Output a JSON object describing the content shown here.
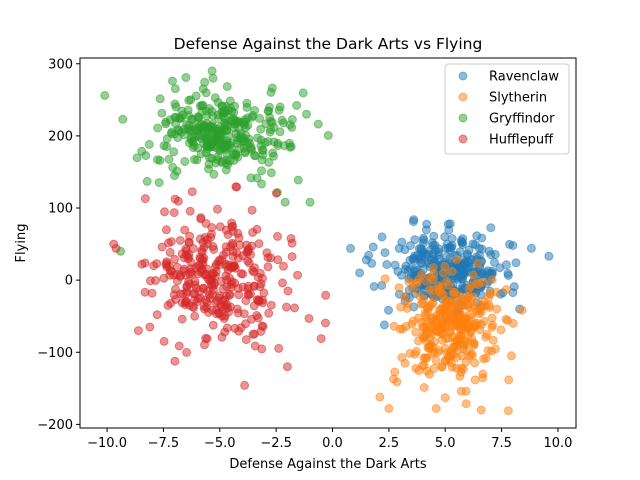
{
  "chart_data": {
    "type": "scatter",
    "title": "Defense Against the Dark Arts vs Flying",
    "xlabel": "Defense Against the Dark Arts",
    "ylabel": "Flying",
    "xlim": [
      -11.2,
      10.8
    ],
    "ylim": [
      -205,
      308
    ],
    "x_ticks": [
      -10.0,
      -7.5,
      -5.0,
      -2.5,
      0.0,
      2.5,
      5.0,
      7.5,
      10.0
    ],
    "x_tick_labels": [
      "−10.0",
      "−7.5",
      "−5.0",
      "−2.5",
      "0.0",
      "2.5",
      "5.0",
      "7.5",
      "10.0"
    ],
    "y_ticks": [
      -200,
      -100,
      0,
      100,
      200,
      300
    ],
    "y_tick_labels": [
      "−200",
      "−100",
      "0",
      "100",
      "200",
      "300"
    ],
    "grid": false,
    "legend_position": "top-right",
    "marker_alpha": 0.5,
    "series": [
      {
        "name": "Ravenclaw",
        "color": "#1f77b4",
        "cluster": {
          "x_mean": 5.0,
          "x_sd": 1.3,
          "y_mean": 12,
          "y_sd": 25,
          "count": 320
        },
        "points": [
          [
            0.8,
            44
          ],
          [
            9.6,
            33
          ],
          [
            3.6,
            84
          ],
          [
            1.5,
            28
          ],
          [
            8.0,
            48
          ],
          [
            8.3,
            -40
          ],
          [
            2.3,
            -62
          ],
          [
            1.2,
            10
          ]
        ]
      },
      {
        "name": "Slytherin",
        "color": "#ff7f0e",
        "cluster": {
          "x_mean": 5.2,
          "x_sd": 1.1,
          "y_mean": -62,
          "y_sd": 38,
          "count": 320
        },
        "points": [
          [
            2.1,
            -162
          ],
          [
            7.8,
            -181
          ],
          [
            5.0,
            -163
          ],
          [
            6.6,
            -180
          ],
          [
            2.5,
            -178
          ],
          [
            4.6,
            -178
          ]
        ]
      },
      {
        "name": "Gryffindor",
        "color": "#2ca02c",
        "cluster": {
          "x_mean": -5.0,
          "x_sd": 1.5,
          "y_mean": 203,
          "y_sd": 28,
          "count": 320
        },
        "points": [
          [
            -10.1,
            256
          ],
          [
            -9.3,
            223
          ],
          [
            -5.3,
            280
          ],
          [
            -1.0,
            108
          ],
          [
            -2.1,
            108
          ],
          [
            -9.4,
            40
          ]
        ]
      },
      {
        "name": "Hufflepuff",
        "color": "#d62728",
        "cluster": {
          "x_mean": -5.0,
          "x_sd": 1.5,
          "y_mean": 2,
          "y_sd": 45,
          "count": 320
        },
        "points": [
          [
            -9.6,
            44
          ],
          [
            -8.3,
            113
          ],
          [
            -0.3,
            -21
          ],
          [
            -3.9,
            -146
          ],
          [
            -2.0,
            -120
          ],
          [
            -0.5,
            -81
          ],
          [
            -8.1,
            -65
          ]
        ]
      }
    ]
  }
}
